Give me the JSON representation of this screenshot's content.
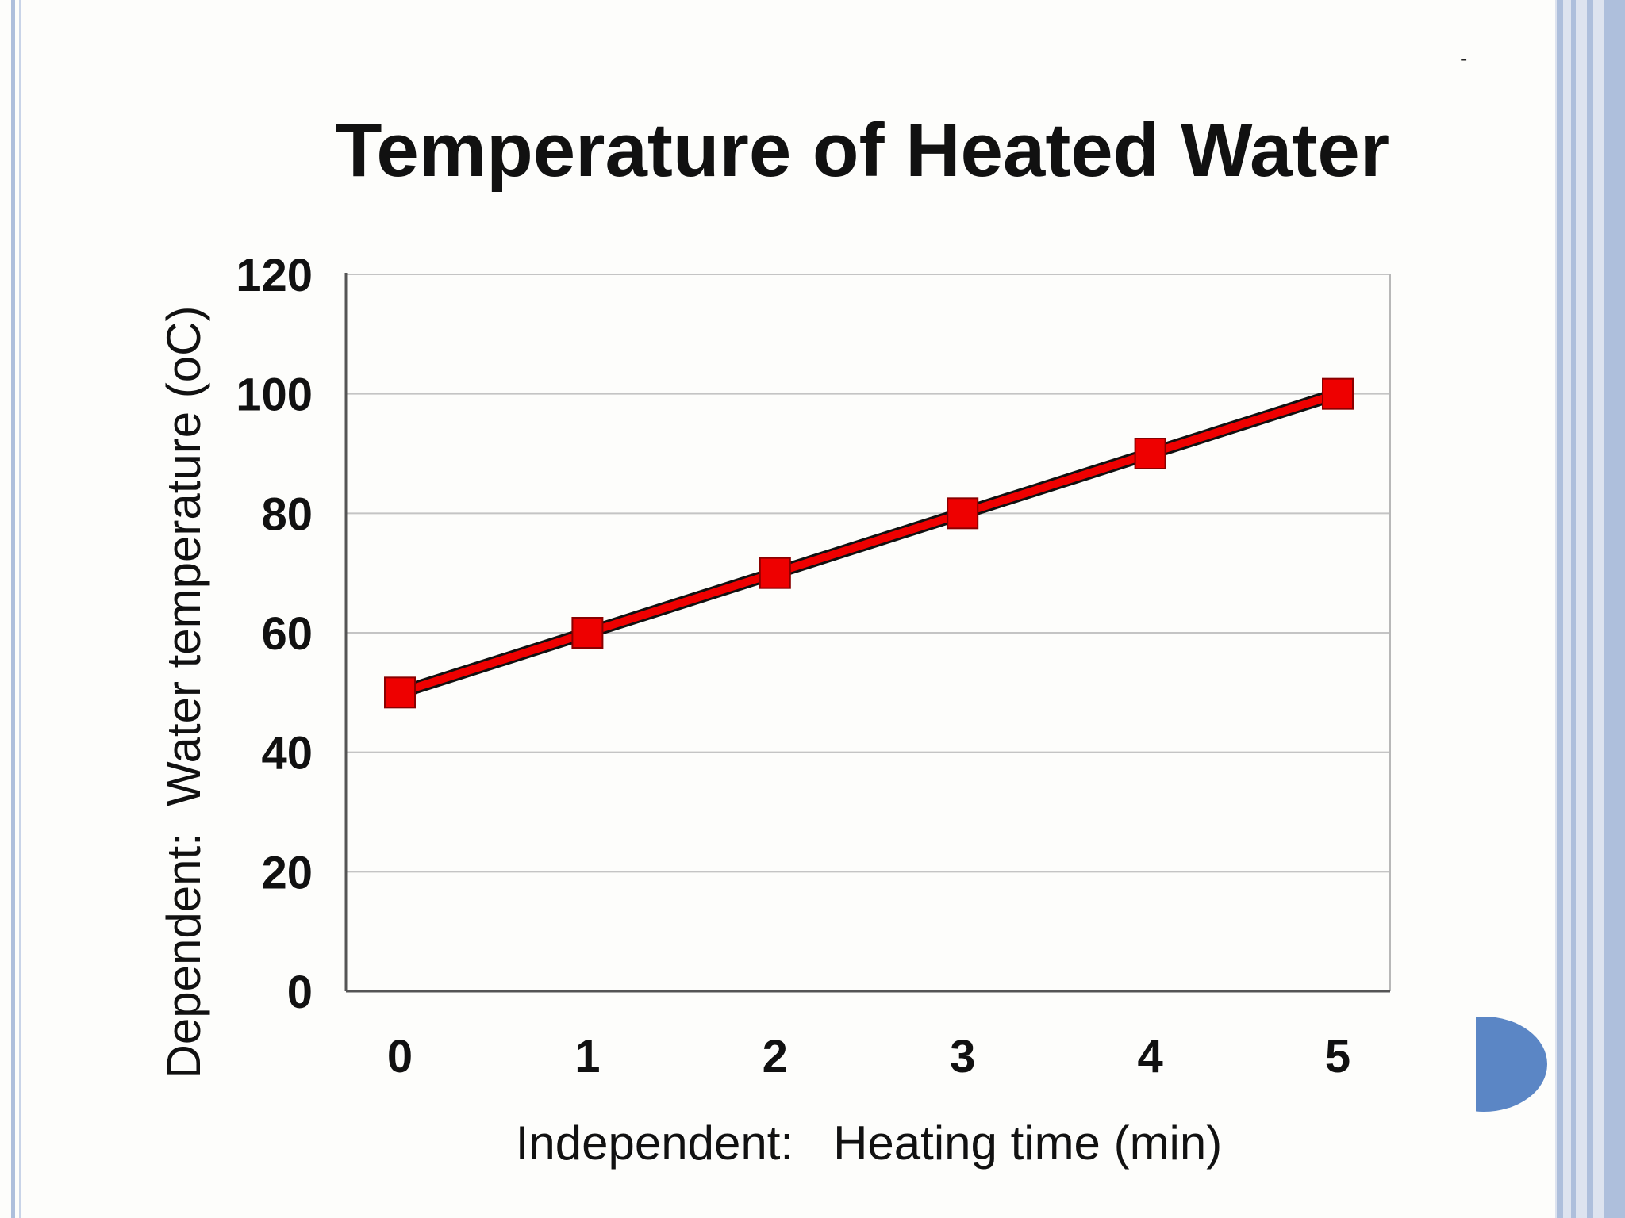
{
  "slide": {
    "corner_mark": "-",
    "colors": {
      "background": "#fdfdfb",
      "frame_blue": "#aebfdc",
      "accent_dot": "#5b86c5"
    }
  },
  "chart_data": {
    "type": "line",
    "title": "Temperature of Heated Water",
    "xlabel": "Independent:   Heating time (min)",
    "ylabel": "Dependent:  Water temperature (oC)",
    "x": [
      0,
      1,
      2,
      3,
      4,
      5
    ],
    "x_tick_labels": [
      "0",
      "1",
      "2",
      "3",
      "4",
      "5"
    ],
    "y_tick_labels": [
      "0",
      "20",
      "40",
      "60",
      "80",
      "100",
      "120"
    ],
    "ylim": [
      0,
      120
    ],
    "grid": true,
    "marker": "square",
    "series": [
      {
        "values": [
          50,
          60,
          70,
          80,
          90,
          100
        ],
        "color": "#ee0000"
      }
    ]
  }
}
